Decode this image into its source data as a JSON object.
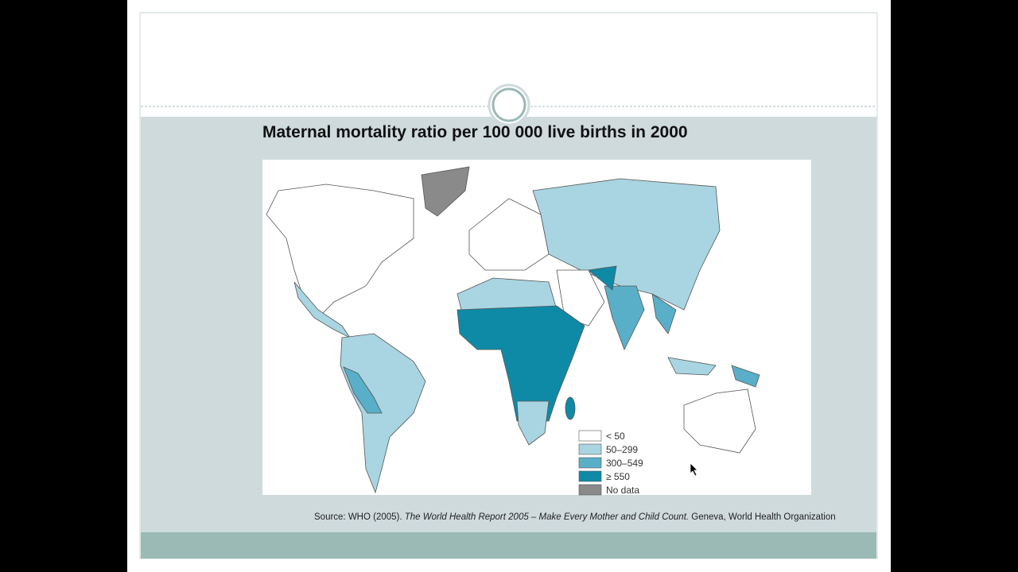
{
  "slide": {
    "title": "Maternal mortality ratio per 100 000 live births in 2000",
    "legend": [
      {
        "label": "< 50",
        "color": "#ffffff"
      },
      {
        "label": "50–299",
        "color": "#a9d5e2"
      },
      {
        "label": "300–549",
        "color": "#5aafc8"
      },
      {
        "label": "≥ 550",
        "color": "#0f8aa6"
      },
      {
        "label": "No data",
        "color": "#8a8a8a"
      }
    ],
    "source": {
      "prefix": "Source: WHO (2005). ",
      "italic": "The World Health Report 2005 – Make Every Mother and Child Count.",
      "suffix": " Geneva, World Health Organization"
    }
  }
}
